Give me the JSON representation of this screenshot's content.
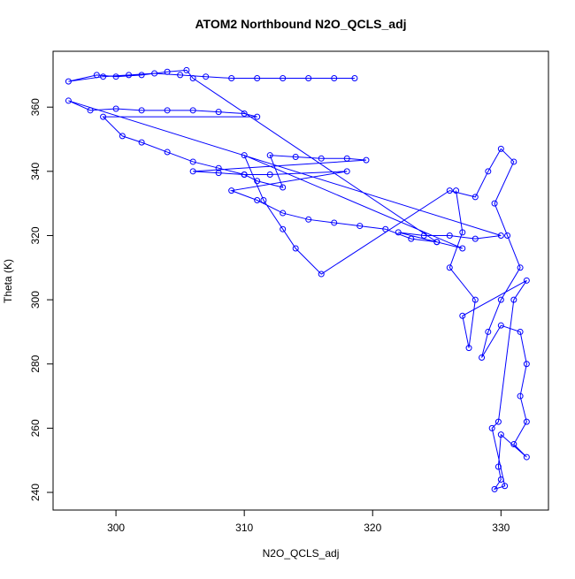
{
  "chart_data": {
    "type": "scatter",
    "title": "ATOM2 Northbound N2O_QCLS_adj",
    "x_label": "N2O_QCLS_adj",
    "y_label": "Theta (K)",
    "xlim": [
      295.1,
      333.7
    ],
    "ylim": [
      234.5,
      377.4
    ],
    "xticks": [
      300,
      310,
      320,
      330
    ],
    "yticks": [
      240,
      260,
      280,
      300,
      320,
      340,
      360
    ],
    "series": [
      {
        "color": "#0000ff",
        "x": [
          318.6,
          317,
          315,
          313,
          311,
          309,
          307,
          305,
          303,
          301,
          299,
          296.3,
          298.5,
          300,
          302,
          304,
          305.5,
          306,
          325,
          322,
          324,
          326,
          328,
          330,
          296.3,
          298,
          300,
          302,
          304,
          306,
          308,
          310,
          311,
          299,
          300.5,
          302,
          304,
          306,
          308,
          310,
          311,
          313,
          312,
          314,
          316,
          318,
          319.5,
          306,
          308,
          310,
          312,
          318,
          309,
          311,
          313,
          315,
          317,
          319,
          321,
          323,
          325,
          327,
          310,
          311.5,
          313,
          314,
          316,
          326,
          328,
          329,
          330,
          331,
          329.5,
          330.5,
          331.5,
          330,
          329,
          328.5,
          330,
          331.5,
          332,
          331.5,
          332,
          331,
          332,
          330,
          329.8,
          330,
          329.5,
          330.3,
          329.3,
          329.8,
          331,
          332,
          327,
          327.5,
          328,
          326,
          327,
          326.5
        ],
        "y": [
          369,
          369,
          369,
          369,
          369,
          369,
          369.5,
          370,
          370.5,
          370,
          369.5,
          368,
          370,
          369.5,
          370,
          371,
          371.5,
          369,
          318,
          321,
          320,
          320,
          319,
          320,
          362,
          359,
          359.5,
          359,
          359,
          359,
          358.5,
          358,
          357,
          357,
          351,
          349,
          346,
          343,
          341,
          339,
          337,
          335,
          345,
          344.5,
          344,
          344,
          343.5,
          340,
          339.5,
          339,
          339,
          340,
          334,
          331,
          327,
          325,
          324,
          323,
          322,
          319,
          318,
          316,
          345,
          331,
          322,
          316,
          308,
          334,
          332,
          340,
          347,
          343,
          330,
          320,
          310,
          300,
          290,
          282,
          292,
          290,
          280,
          270,
          262,
          255,
          251,
          258,
          248,
          244,
          241,
          242,
          260,
          262,
          300,
          306,
          295,
          285,
          300,
          310,
          321,
          334
        ]
      }
    ]
  }
}
